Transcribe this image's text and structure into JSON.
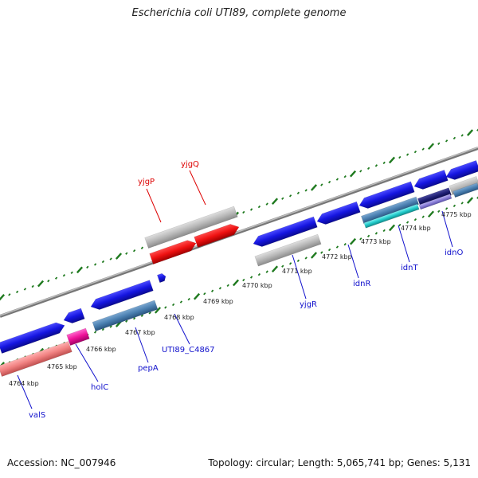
{
  "title": "Escherichia coli UTI89, complete genome",
  "footer": {
    "accession": "Accession: NC_007946",
    "summary": "Topology: circular; Length: 5,065,741 bp; Genes: 5,131"
  },
  "colors": {
    "backbone": "#8a8a8a",
    "tick": "#1f7a1f",
    "forward_gene": "#1515e0",
    "reverse_gene": "#1515e0",
    "hypothetical": "#b8b8b8",
    "rna": "#ee1111",
    "cds_steelblue": "#4a7fb0",
    "pseudo_pink": "#f08080",
    "magenta": "#ee1199",
    "cyan": "#22cccc",
    "navy": "#1a1a6e",
    "purple": "#8a7fd8",
    "label_blue": "#1010cc",
    "label_red": "#dd0000"
  },
  "scale_labels": [
    "4764 kbp",
    "4765 kbp",
    "4766 kbp",
    "4767 kbp",
    "4768 kbp",
    "4769 kbp",
    "4770 kbp",
    "4771 kbp",
    "4772 kbp",
    "4773 kbp",
    "4774 kbp",
    "4775 kbp"
  ],
  "gene_labels": [
    {
      "text": "valS",
      "color": "blue"
    },
    {
      "text": "holC",
      "color": "blue"
    },
    {
      "text": "pepA",
      "color": "blue"
    },
    {
      "text": "UTI89_C4867",
      "color": "blue"
    },
    {
      "text": "yjgR",
      "color": "blue"
    },
    {
      "text": "idnR",
      "color": "blue"
    },
    {
      "text": "idnT",
      "color": "blue"
    },
    {
      "text": "idnO",
      "color": "blue"
    },
    {
      "text": "yjgP",
      "color": "red"
    },
    {
      "text": "yjgQ",
      "color": "red"
    }
  ]
}
